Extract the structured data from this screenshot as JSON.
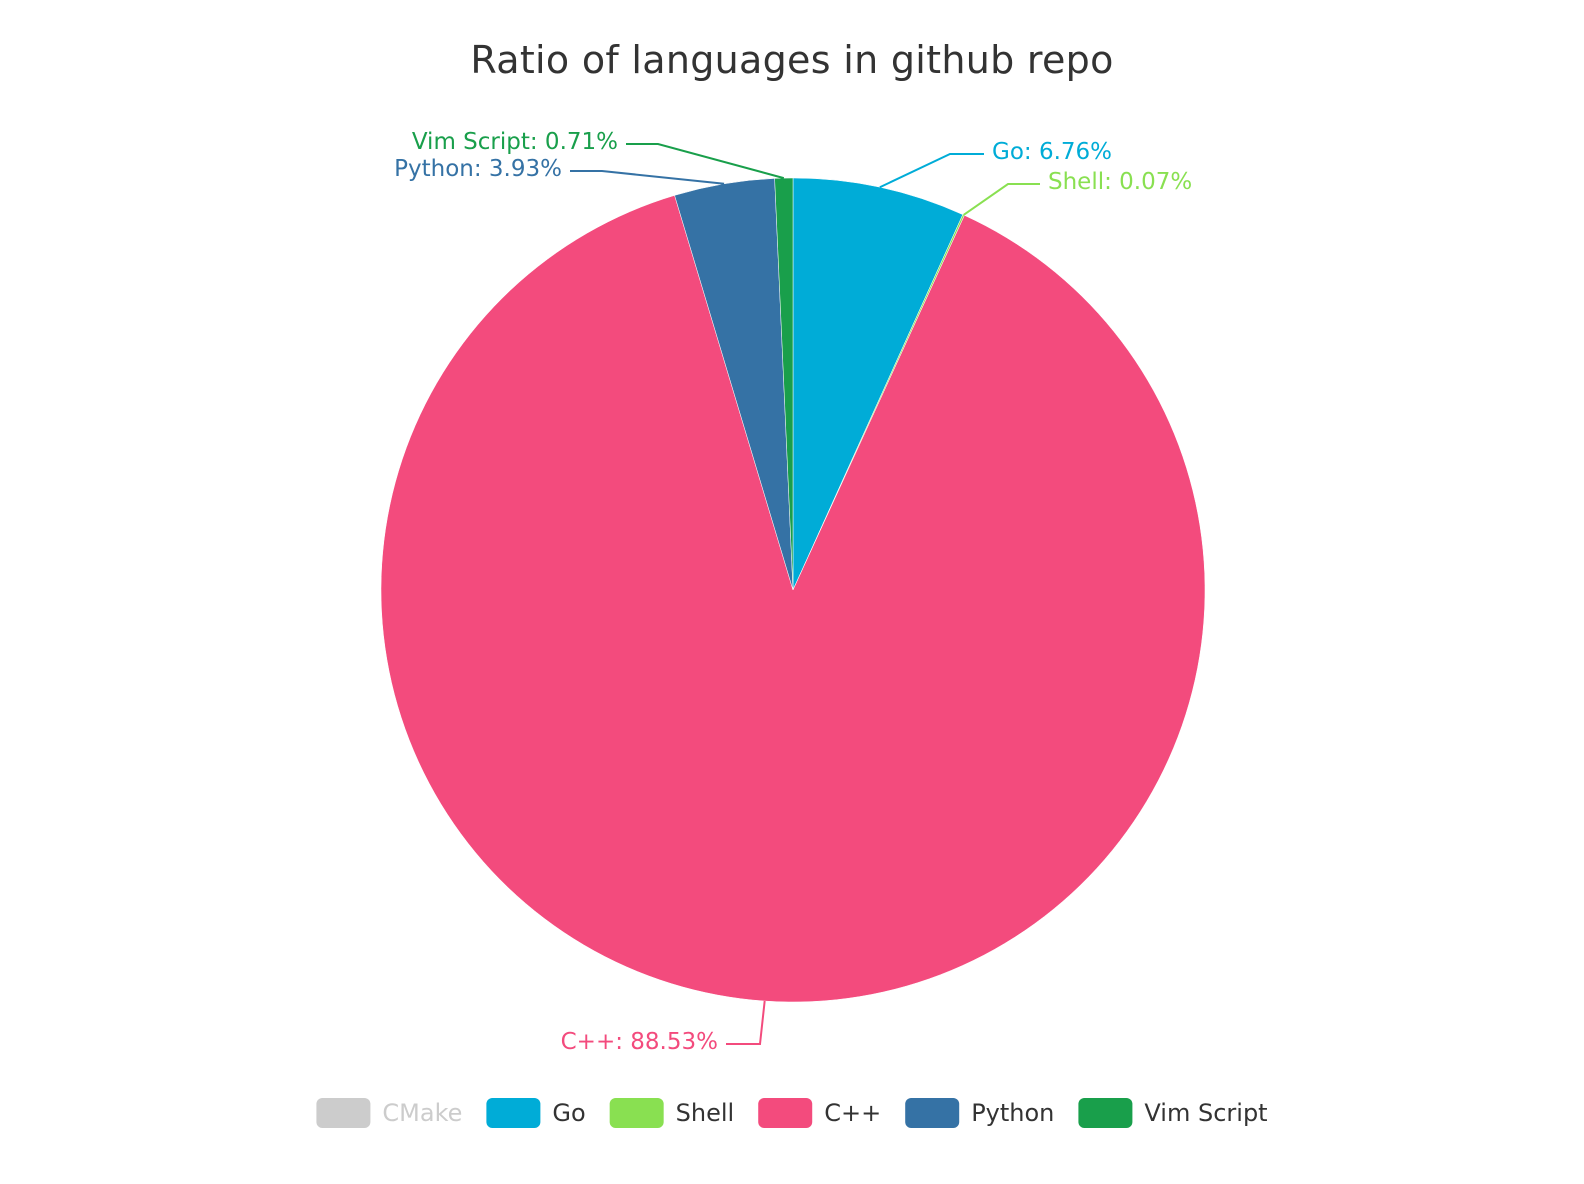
{
  "chart_data": {
    "type": "pie",
    "title": "Ratio of languages in github repo",
    "legend_position": "bottom",
    "slices": [
      {
        "name": "CMake",
        "value": 0,
        "label": "",
        "color": "#cccccc",
        "legend_disabled": true
      },
      {
        "name": "Go",
        "value": 6.76,
        "label": "Go: 6.76%",
        "color": "#00acd7"
      },
      {
        "name": "Shell",
        "value": 0.07,
        "label": "Shell: 0.07%",
        "color": "#89e051"
      },
      {
        "name": "C++",
        "value": 88.53,
        "label": "C++: 88.53%",
        "color": "#f34b7d"
      },
      {
        "name": "Python",
        "value": 3.93,
        "label": "Python: 3.93%",
        "color": "#3572a5"
      },
      {
        "name": "Vim Script",
        "value": 0.71,
        "label": "Vim Script: 0.71%",
        "color": "#199f4b"
      }
    ]
  }
}
